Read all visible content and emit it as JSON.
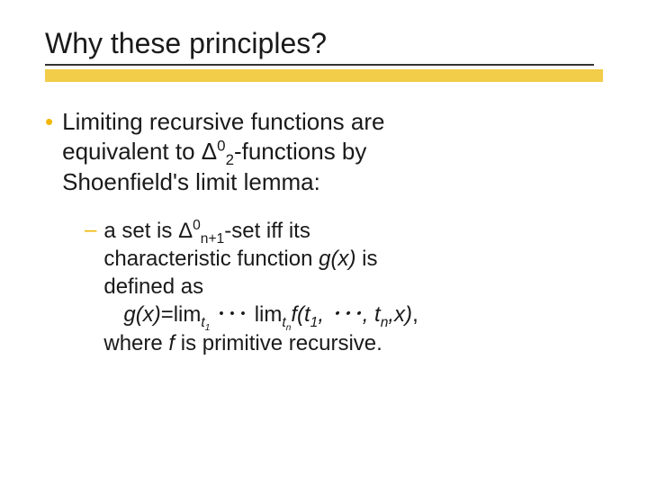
{
  "title": "Why these principles?",
  "bullet": {
    "line1": "Limiting recursive functions are",
    "line2_pre": "equivalent to ",
    "line2_delta": "Δ",
    "line2_sup": "0",
    "line2_sub": "2",
    "line2_post": "-functions by",
    "line3": "Shoenfield's limit lemma:"
  },
  "sub": {
    "l1_pre": "a set is ",
    "l1_delta": "Δ",
    "l1_sup": "0",
    "l1_sub": "n+1",
    "l1_post": "-set iff its",
    "l2_pre": "characteristic function ",
    "l2_gx": "g(x)",
    "l2_post": " is",
    "l3": "defined as",
    "l4_gx": "g(x)",
    "l4_eq": "=lim",
    "l4_t1": "t",
    "l4_t1n": "1",
    "l4_dots1": "･･･ ",
    "l4_lim2": "lim",
    "l4_tn": "t",
    "l4_tnn": "n",
    "l4_ft": "f(t",
    "l4_ft1": "1",
    "l4_mid": ", ･･･, t",
    "l4_ftn": "n",
    "l4_end": ",x)",
    "l4_comma": ",",
    "l5_pre": "where ",
    "l5_f": "f",
    "l5_post": " is primitive recursive."
  },
  "colors": {
    "accent": "#f2b705",
    "underline_thick": "#f2cd49",
    "underline_thin": "#333333",
    "text": "#1a1a1a",
    "background": "#ffffff"
  }
}
